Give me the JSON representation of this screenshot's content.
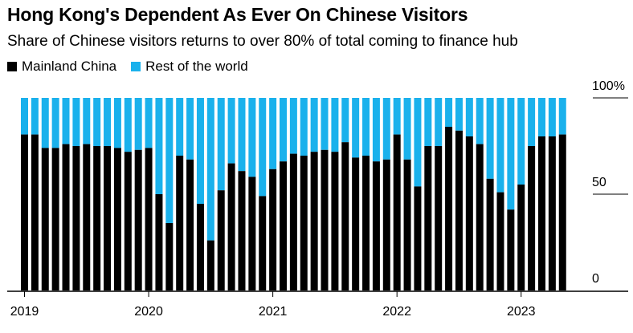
{
  "title": "Hong Kong's Dependent As Ever On Chinese Visitors",
  "subtitle": "Share of Chinese visitors returns to over 80% of total coming to finance hub",
  "colors": {
    "mainland": "#000000",
    "rest": "#1ab1ec"
  },
  "chart_data": {
    "type": "bar",
    "stacked": true,
    "title": "Hong Kong's Dependent As Ever On Chinese Visitors",
    "xlabel": "",
    "ylabel": "",
    "ylim": [
      0,
      100
    ],
    "y_ticks": [
      {
        "value": 100,
        "label": "100%"
      },
      {
        "value": 50,
        "label": "50"
      },
      {
        "value": 0,
        "label": "0"
      }
    ],
    "x_ticks": [
      {
        "index": 0,
        "label": "2019"
      },
      {
        "index": 12,
        "label": "2020"
      },
      {
        "index": 24,
        "label": "2021"
      },
      {
        "index": 36,
        "label": "2022"
      },
      {
        "index": 48,
        "label": "2023"
      }
    ],
    "legend_position": "top-left",
    "series": [
      {
        "name": "Mainland China",
        "color": "#000000",
        "values": [
          81,
          81,
          74,
          74,
          76,
          75,
          76,
          75,
          75,
          74,
          72,
          73,
          74,
          50,
          35,
          70,
          68,
          45,
          26,
          52,
          66,
          62,
          59,
          49,
          63,
          67,
          71,
          70,
          72,
          73,
          72,
          77,
          69,
          70,
          67,
          68,
          81,
          68,
          54,
          75,
          75,
          85,
          83,
          80,
          76,
          58,
          51,
          42,
          55,
          75,
          80,
          80,
          81
        ]
      },
      {
        "name": "Rest of the world",
        "color": "#1ab1ec",
        "values": [
          19,
          19,
          26,
          26,
          24,
          25,
          24,
          25,
          25,
          26,
          28,
          27,
          26,
          50,
          65,
          30,
          32,
          55,
          74,
          48,
          34,
          38,
          41,
          51,
          37,
          33,
          29,
          30,
          28,
          27,
          28,
          23,
          31,
          30,
          33,
          32,
          19,
          32,
          46,
          25,
          25,
          15,
          17,
          20,
          24,
          42,
          49,
          58,
          45,
          25,
          20,
          20,
          19
        ]
      }
    ]
  }
}
